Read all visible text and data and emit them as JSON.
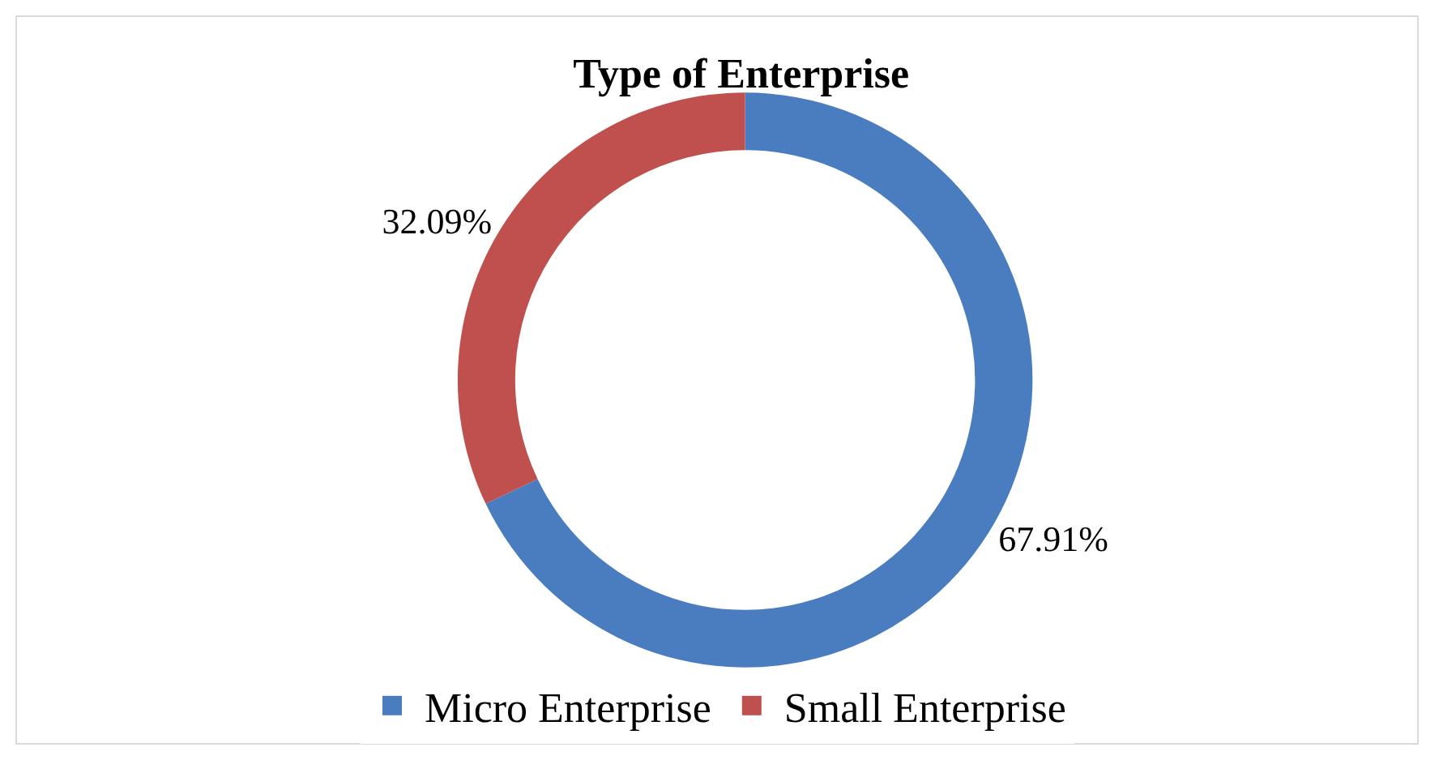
{
  "chart_data": {
    "type": "donut",
    "title": "Type of Enterprise",
    "categories": [
      "Micro Enterprise",
      "Small Enterprise"
    ],
    "values": [
      67.91,
      32.09
    ],
    "colors": [
      "#4a7cc0",
      "#c0504d"
    ],
    "value_labels": [
      "67.91%",
      "32.09%"
    ],
    "legend": "bottom"
  }
}
